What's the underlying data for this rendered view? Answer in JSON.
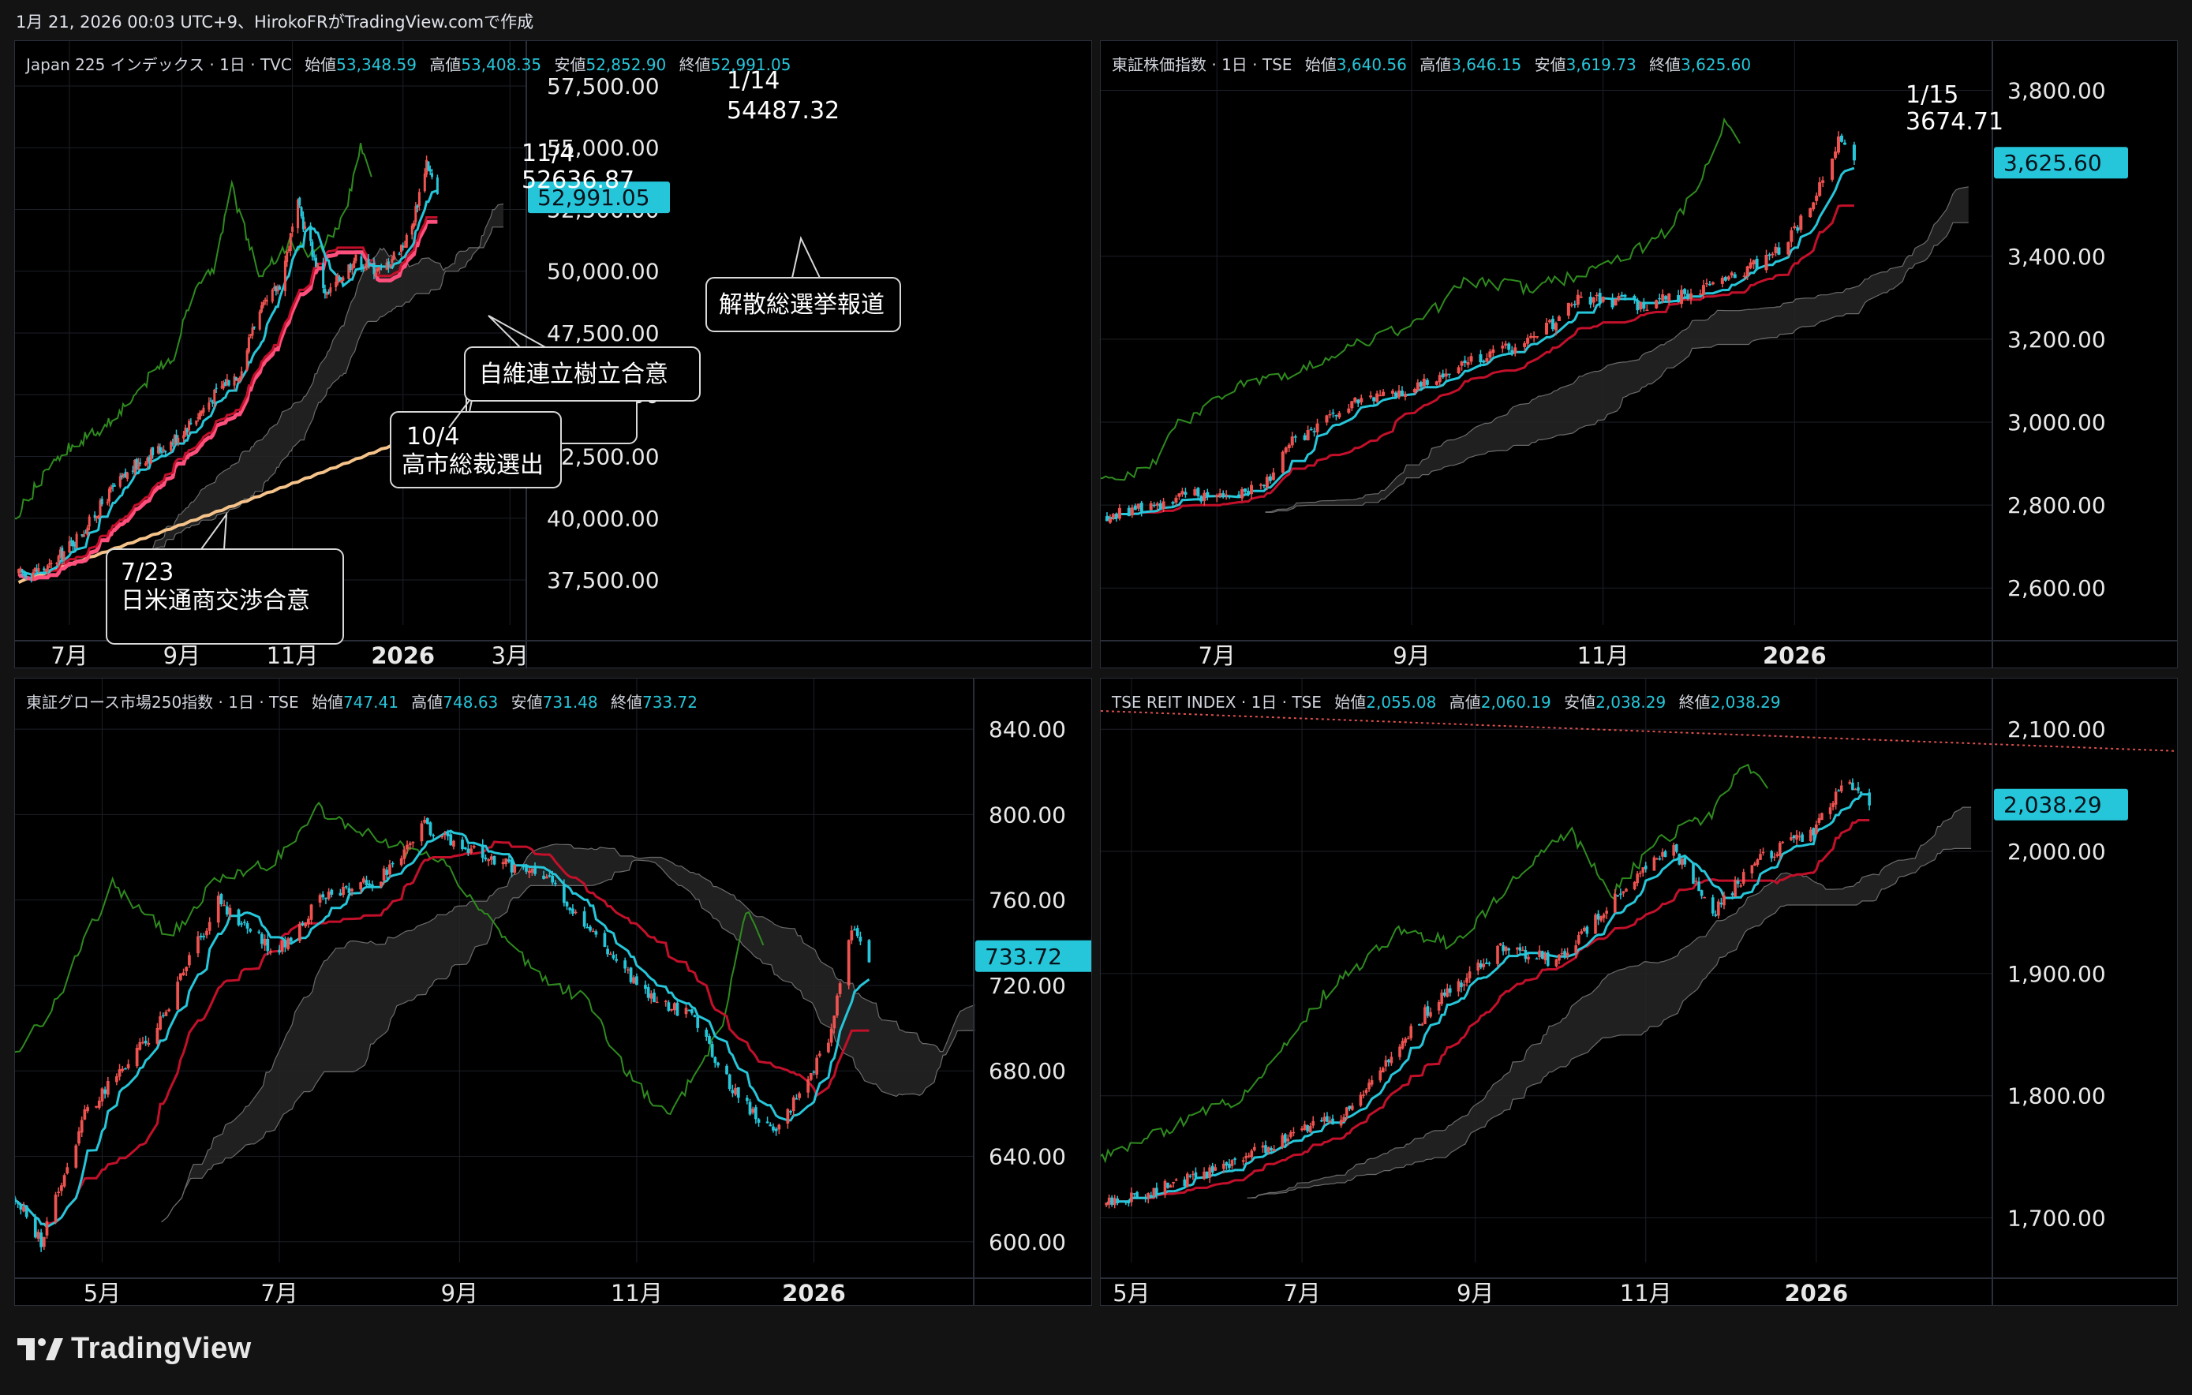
{
  "header": {
    "caption": "1月 21, 2026 00:03 UTC+9、HirokoFRがTradingView.comで作成"
  },
  "footer": {
    "brand": "TradingView"
  },
  "colors": {
    "background": "#000000",
    "page": "#131313",
    "up": "#ef5350",
    "down": "#26c6da",
    "cyan_line": "#26c6da",
    "red_line": "#c3102a",
    "green_line": "#2e8b1e",
    "cloud": "#2a2a2a",
    "price_tag": "#26c6da",
    "sma200": "#f5c38a",
    "ema_pink": "#ff4f7d"
  },
  "charts": [
    {
      "id": "nikkei",
      "legend": {
        "name": "Japan 225 インデックス · 1日 · TVC",
        "open_label": "始値",
        "open": "53,348.59",
        "high_label": "高値",
        "high": "53,408.35",
        "low_label": "安値",
        "low": "52,852.90",
        "close_label": "終値",
        "close": "52,991.05"
      },
      "y_ticks": [
        "57,500.00",
        "55,000.00",
        "52,500.00",
        "50,000.00",
        "47,500.00",
        "45,000.00",
        "42,500.00",
        "40,000.00",
        "37,500.00"
      ],
      "price_tag": "52,991.05",
      "x_ticks": [
        "7月",
        "9月",
        "11月",
        "2026",
        "3月"
      ],
      "annotations": [
        {
          "date": "1/14",
          "value": "54487.32"
        },
        {
          "date": "11/4",
          "value": "52636.87"
        },
        {
          "date": "10/4",
          "value": "高市総裁選出"
        },
        {
          "date": "7/23",
          "value": "日米通商交渉合意"
        },
        {
          "text": "自維連立樹立合意"
        },
        {
          "text": "解散総選挙報道"
        }
      ]
    },
    {
      "id": "topix",
      "legend": {
        "name": "東証株価指数 · 1日 · TSE",
        "open_label": "始値",
        "open": "3,640.56",
        "high_label": "高値",
        "high": "3,646.15",
        "low_label": "安値",
        "low": "3,619.73",
        "close_label": "終値",
        "close": "3,625.60"
      },
      "y_ticks": [
        "3,800.00",
        "3,400.00",
        "3,200.00",
        "3,000.00",
        "2,800.00",
        "2,600.00"
      ],
      "price_tag": "3,625.60",
      "x_ticks": [
        "7月",
        "9月",
        "11月",
        "2026"
      ],
      "annotations": [
        {
          "date": "1/15",
          "value": "3674.71"
        }
      ]
    },
    {
      "id": "growth",
      "legend": {
        "name": "東証グロース市場250指数 · 1日 · TSE",
        "open_label": "始値",
        "open": "747.41",
        "high_label": "高値",
        "high": "748.63",
        "low_label": "安値",
        "low": "731.48",
        "close_label": "終値",
        "close": "733.72"
      },
      "y_ticks": [
        "840.00",
        "800.00",
        "760.00",
        "720.00",
        "680.00",
        "640.00",
        "600.00"
      ],
      "price_tag": "733.72",
      "x_ticks": [
        "5月",
        "7月",
        "9月",
        "11月",
        "2026"
      ],
      "annotations": []
    },
    {
      "id": "reit",
      "legend": {
        "name": "TSE REIT INDEX · 1日 · TSE",
        "open_label": "始値",
        "open": "2,055.08",
        "high_label": "高値",
        "high": "2,060.19",
        "low_label": "安値",
        "low": "2,038.29",
        "close_label": "終値",
        "close": "2,038.29"
      },
      "y_ticks": [
        "2,100.00",
        "2,000.00",
        "1,900.00",
        "1,800.00",
        "1,700.00"
      ],
      "price_tag": "2,038.29",
      "x_ticks": [
        "5月",
        "7月",
        "9月",
        "11月",
        "2026"
      ],
      "annotations": []
    }
  ],
  "chart_data": [
    {
      "type": "candlestick",
      "title": "Japan 225 インデックス · 1日 · TVC",
      "ylim": [
        36000,
        59000
      ],
      "x_range": [
        "2025-06-01",
        "2026-03-10"
      ],
      "keypoints": [
        [
          "2025-06-01",
          37700
        ],
        [
          "2025-06-20",
          38000
        ],
        [
          "2025-07-10",
          39600
        ],
        [
          "2025-07-23",
          41000
        ],
        [
          "2025-08-10",
          42400
        ],
        [
          "2025-08-25",
          43000
        ],
        [
          "2025-09-10",
          44200
        ],
        [
          "2025-09-25",
          45500
        ],
        [
          "2025-10-04",
          46000
        ],
        [
          "2025-10-10",
          47800
        ],
        [
          "2025-10-25",
          49500
        ],
        [
          "2025-11-04",
          52636.87
        ],
        [
          "2025-11-20",
          49000
        ],
        [
          "2025-12-05",
          50500
        ],
        [
          "2025-12-20",
          50000
        ],
        [
          "2026-01-05",
          51500
        ],
        [
          "2026-01-14",
          54487.32
        ],
        [
          "2026-01-20",
          52991.05
        ]
      ],
      "lines": [
        "conversion (cyan)",
        "base (red)",
        "lagging span (green)",
        "SMA (orange)",
        "EMA (pink)",
        "ichimoku cloud"
      ],
      "events": [
        {
          "date": "2025-07-23",
          "label": "日米通商交渉合意"
        },
        {
          "date": "2025-10-04",
          "label": "高市総裁選出"
        },
        {
          "date": "2025-10-10",
          "label": "自維連立樹立合意"
        },
        {
          "date": "2025-11-04",
          "label": "52636.87"
        },
        {
          "date": "2026-01-10",
          "label": "解散総選挙報道"
        },
        {
          "date": "2026-01-14",
          "label": "54487.32"
        }
      ]
    },
    {
      "type": "candlestick",
      "title": "東証株価指数 · 1日 · TSE",
      "ylim": [
        2530,
        3900
      ],
      "x_range": [
        "2025-05-25",
        "2026-03-05"
      ],
      "keypoints": [
        [
          "2025-05-25",
          2770
        ],
        [
          "2025-06-20",
          2820
        ],
        [
          "2025-07-15",
          2840
        ],
        [
          "2025-07-25",
          2950
        ],
        [
          "2025-08-15",
          3050
        ],
        [
          "2025-09-01",
          3080
        ],
        [
          "2025-09-20",
          3150
        ],
        [
          "2025-10-10",
          3200
        ],
        [
          "2025-10-25",
          3300
        ],
        [
          "2025-11-15",
          3280
        ],
        [
          "2025-12-05",
          3330
        ],
        [
          "2025-12-25",
          3400
        ],
        [
          "2026-01-05",
          3500
        ],
        [
          "2026-01-15",
          3674.71
        ],
        [
          "2026-01-20",
          3625.6
        ]
      ],
      "lines": [
        "conversion (cyan)",
        "base (red)",
        "lagging span (green)",
        "ichimoku cloud"
      ]
    },
    {
      "type": "candlestick",
      "title": "東証グロース市場250指数 · 1日 · TSE",
      "ylim": [
        594,
        860
      ],
      "x_range": [
        "2025-04-01",
        "2026-02-25"
      ],
      "keypoints": [
        [
          "2025-04-01",
          620
        ],
        [
          "2025-04-10",
          600
        ],
        [
          "2025-04-25",
          660
        ],
        [
          "2025-05-20",
          700
        ],
        [
          "2025-06-10",
          760
        ],
        [
          "2025-06-30",
          735
        ],
        [
          "2025-07-15",
          760
        ],
        [
          "2025-08-05",
          770
        ],
        [
          "2025-08-20",
          795
        ],
        [
          "2025-09-10",
          780
        ],
        [
          "2025-10-01",
          770
        ],
        [
          "2025-10-20",
          740
        ],
        [
          "2025-11-05",
          715
        ],
        [
          "2025-11-20",
          705
        ],
        [
          "2025-12-05",
          670
        ],
        [
          "2025-12-18",
          650
        ],
        [
          "2026-01-05",
          690
        ],
        [
          "2026-01-14",
          745
        ],
        [
          "2026-01-20",
          733.72
        ]
      ],
      "lines": [
        "conversion (cyan)",
        "base (red)",
        "lagging span (green)",
        "ichimoku cloud"
      ]
    },
    {
      "type": "candlestick",
      "title": "TSE REIT INDEX · 1日 · TSE",
      "ylim": [
        1670,
        2135
      ],
      "x_range": [
        "2025-04-20",
        "2026-03-05"
      ],
      "keypoints": [
        [
          "2025-04-20",
          1710
        ],
        [
          "2025-05-20",
          1730
        ],
        [
          "2025-06-20",
          1760
        ],
        [
          "2025-07-20",
          1790
        ],
        [
          "2025-08-15",
          1870
        ],
        [
          "2025-09-10",
          1920
        ],
        [
          "2025-10-01",
          1910
        ],
        [
          "2025-10-20",
          1960
        ],
        [
          "2025-11-10",
          2005
        ],
        [
          "2025-11-25",
          1950
        ],
        [
          "2025-12-10",
          1990
        ],
        [
          "2026-01-01",
          2020
        ],
        [
          "2026-01-12",
          2060.19
        ],
        [
          "2026-01-20",
          2038.29
        ]
      ],
      "lines": [
        "conversion (cyan)",
        "base (red)",
        "lagging span (green)",
        "resistance (red dotted)",
        "ichimoku cloud"
      ]
    }
  ]
}
